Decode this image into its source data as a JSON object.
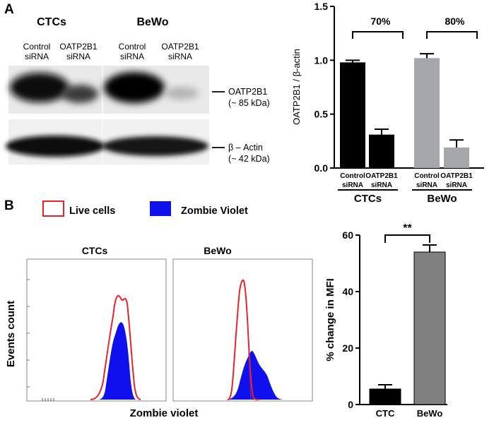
{
  "panel_labels": {
    "a": "A",
    "b": "B"
  },
  "blot": {
    "group_left": "CTCs",
    "group_right": "BeWo",
    "lane_labels": [
      {
        "line1": "Control",
        "line2": "siRNA"
      },
      {
        "line1": "OATP2B1",
        "line2": "siRNA"
      },
      {
        "line1": "Control",
        "line2": "siRNA"
      },
      {
        "line1": "OATP2B1",
        "line2": "siRNA"
      }
    ],
    "band_top": {
      "name": "OATP2B1",
      "size": "(~ 85 kDa)"
    },
    "band_bottom": {
      "name": "β – Actin",
      "size": "(~ 42 kDa)"
    }
  },
  "legend": {
    "live": {
      "label": "Live cells",
      "color": "#e8242a"
    },
    "zombie": {
      "label": "Zombie Violet",
      "color": "#1010ee"
    }
  },
  "flow": {
    "ylabel": "Events count",
    "xlabel": "Zombie violet",
    "panel_left": "CTCs",
    "panel_right": "BeWo"
  },
  "chart_data": [
    {
      "type": "bar",
      "title": "",
      "ylabel": "OATP2B1 / β-actin",
      "ylim": [
        0,
        1.5
      ],
      "yticks": [
        "0.0",
        "0.5",
        "1.0",
        "1.5"
      ],
      "ytick_values": [
        0,
        0.5,
        1.0,
        1.5
      ],
      "categories": [
        {
          "line1": "Control",
          "line2": "siRNA"
        },
        {
          "line1": "OATP2B1",
          "line2": "siRNA"
        },
        {
          "line1": "Control",
          "line2": "siRNA"
        },
        {
          "line1": "OATP2B1",
          "line2": "siRNA"
        }
      ],
      "values": [
        0.98,
        0.31,
        1.02,
        0.19
      ],
      "errors": [
        0.02,
        0.05,
        0.04,
        0.07
      ],
      "colors": [
        "#000000",
        "#000000",
        "#a6a6ad",
        "#a6a6ad"
      ],
      "groups": [
        "CTCs",
        "BeWo"
      ],
      "annotations": [
        "70%",
        "80%"
      ]
    },
    {
      "type": "bar",
      "title": "",
      "ylabel": "% change in MFI",
      "ylim": [
        0,
        60
      ],
      "yticks": [
        "0",
        "20",
        "40",
        "60"
      ],
      "ytick_values": [
        0,
        20,
        40,
        60
      ],
      "categories": [
        "CTC",
        "BeWo"
      ],
      "values": [
        5.5,
        54
      ],
      "errors": [
        1.5,
        2.5
      ],
      "colors": [
        "#000000",
        "#808080"
      ],
      "significance": "**"
    }
  ]
}
